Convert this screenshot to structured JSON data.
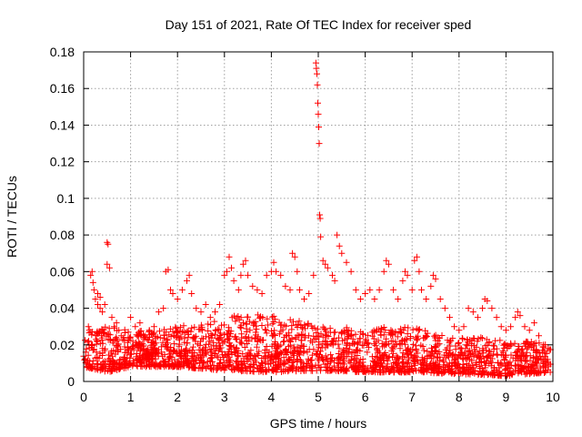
{
  "chart_data": {
    "type": "scatter",
    "title": "Day 151 of 2021, Rate Of TEC Index for receiver sped",
    "xlabel": "GPS time / hours",
    "ylabel": "ROTI / TECUs",
    "xlim": [
      0,
      10
    ],
    "ylim": [
      0,
      0.18
    ],
    "xticks": [
      0,
      1,
      2,
      3,
      4,
      5,
      6,
      7,
      8,
      9,
      10
    ],
    "xtick_labels": [
      "0",
      "1",
      "2",
      "3",
      "4",
      "5",
      "6",
      "7",
      "8",
      "9",
      "10"
    ],
    "yticks": [
      0,
      0.02,
      0.04,
      0.06,
      0.08,
      0.1,
      0.12,
      0.14,
      0.16,
      0.18
    ],
    "ytick_labels": [
      "0",
      "0.02",
      "0.04",
      "0.06",
      "0.08",
      "0.1",
      "0.12",
      "0.14",
      "0.16",
      "0.18"
    ],
    "grid": true,
    "marker": "+",
    "color": "#ff0000",
    "series": [
      {
        "name": "ROTI",
        "points": [
          [
            0.15,
            0.058
          ],
          [
            0.18,
            0.06
          ],
          [
            0.2,
            0.054
          ],
          [
            0.22,
            0.05
          ],
          [
            0.25,
            0.045
          ],
          [
            0.3,
            0.042
          ],
          [
            0.35,
            0.04
          ],
          [
            0.4,
            0.038
          ],
          [
            0.45,
            0.042
          ],
          [
            0.5,
            0.076
          ],
          [
            0.52,
            0.075
          ],
          [
            0.5,
            0.064
          ],
          [
            0.55,
            0.062
          ],
          [
            0.6,
            0.035
          ],
          [
            0.65,
            0.03
          ],
          [
            0.7,
            0.032
          ],
          [
            0.75,
            0.028
          ],
          [
            0.8,
            0.025
          ],
          [
            0.1,
            0.03
          ],
          [
            0.12,
            0.028
          ],
          [
            0.3,
            0.048
          ],
          [
            0.35,
            0.046
          ],
          [
            1.0,
            0.035
          ],
          [
            1.1,
            0.03
          ],
          [
            1.2,
            0.032
          ],
          [
            1.3,
            0.025
          ],
          [
            1.4,
            0.028
          ],
          [
            1.5,
            0.03
          ],
          [
            1.6,
            0.038
          ],
          [
            1.7,
            0.04
          ],
          [
            1.75,
            0.06
          ],
          [
            1.8,
            0.061
          ],
          [
            1.85,
            0.05
          ],
          [
            1.9,
            0.048
          ],
          [
            2.0,
            0.045
          ],
          [
            2.1,
            0.05
          ],
          [
            2.2,
            0.055
          ],
          [
            2.25,
            0.058
          ],
          [
            2.3,
            0.048
          ],
          [
            2.4,
            0.04
          ],
          [
            2.5,
            0.038
          ],
          [
            2.6,
            0.042
          ],
          [
            2.7,
            0.035
          ],
          [
            2.8,
            0.038
          ],
          [
            2.9,
            0.042
          ],
          [
            3.0,
            0.058
          ],
          [
            3.05,
            0.06
          ],
          [
            3.1,
            0.068
          ],
          [
            3.15,
            0.062
          ],
          [
            3.2,
            0.055
          ],
          [
            3.3,
            0.05
          ],
          [
            3.35,
            0.058
          ],
          [
            3.4,
            0.064
          ],
          [
            3.45,
            0.066
          ],
          [
            3.5,
            0.058
          ],
          [
            3.6,
            0.052
          ],
          [
            3.7,
            0.05
          ],
          [
            3.8,
            0.048
          ],
          [
            3.9,
            0.058
          ],
          [
            4.0,
            0.06
          ],
          [
            4.05,
            0.065
          ],
          [
            4.1,
            0.06
          ],
          [
            4.2,
            0.058
          ],
          [
            4.3,
            0.052
          ],
          [
            4.4,
            0.05
          ],
          [
            4.45,
            0.07
          ],
          [
            4.5,
            0.068
          ],
          [
            4.55,
            0.06
          ],
          [
            4.6,
            0.05
          ],
          [
            4.7,
            0.045
          ],
          [
            4.8,
            0.048
          ],
          [
            4.9,
            0.058
          ],
          [
            4.95,
            0.174
          ],
          [
            4.96,
            0.171
          ],
          [
            4.97,
            0.168
          ],
          [
            4.98,
            0.162
          ],
          [
            4.99,
            0.152
          ],
          [
            5.0,
            0.146
          ],
          [
            5.01,
            0.139
          ],
          [
            5.02,
            0.13
          ],
          [
            5.03,
            0.091
          ],
          [
            5.04,
            0.089
          ],
          [
            5.05,
            0.079
          ],
          [
            5.1,
            0.066
          ],
          [
            5.15,
            0.064
          ],
          [
            5.2,
            0.062
          ],
          [
            5.3,
            0.058
          ],
          [
            5.35,
            0.055
          ],
          [
            5.4,
            0.08
          ],
          [
            5.45,
            0.074
          ],
          [
            5.5,
            0.07
          ],
          [
            5.6,
            0.065
          ],
          [
            5.7,
            0.06
          ],
          [
            5.8,
            0.05
          ],
          [
            5.9,
            0.045
          ],
          [
            6.0,
            0.048
          ],
          [
            6.1,
            0.05
          ],
          [
            6.2,
            0.045
          ],
          [
            6.3,
            0.05
          ],
          [
            6.4,
            0.06
          ],
          [
            6.45,
            0.066
          ],
          [
            6.5,
            0.064
          ],
          [
            6.6,
            0.05
          ],
          [
            6.7,
            0.045
          ],
          [
            6.8,
            0.055
          ],
          [
            6.85,
            0.06
          ],
          [
            6.9,
            0.058
          ],
          [
            7.0,
            0.05
          ],
          [
            7.05,
            0.066
          ],
          [
            7.1,
            0.068
          ],
          [
            7.15,
            0.06
          ],
          [
            7.2,
            0.05
          ],
          [
            7.3,
            0.045
          ],
          [
            7.4,
            0.052
          ],
          [
            7.45,
            0.058
          ],
          [
            7.5,
            0.056
          ],
          [
            7.6,
            0.045
          ],
          [
            7.7,
            0.04
          ],
          [
            7.8,
            0.035
          ],
          [
            7.9,
            0.03
          ],
          [
            8.0,
            0.028
          ],
          [
            8.1,
            0.03
          ],
          [
            8.2,
            0.04
          ],
          [
            8.3,
            0.038
          ],
          [
            8.4,
            0.035
          ],
          [
            8.5,
            0.04
          ],
          [
            8.55,
            0.045
          ],
          [
            8.6,
            0.044
          ],
          [
            8.7,
            0.04
          ],
          [
            8.8,
            0.035
          ],
          [
            8.9,
            0.03
          ],
          [
            9.0,
            0.028
          ],
          [
            9.1,
            0.03
          ],
          [
            9.2,
            0.035
          ],
          [
            9.25,
            0.038
          ],
          [
            9.3,
            0.036
          ],
          [
            9.4,
            0.03
          ],
          [
            9.5,
            0.028
          ],
          [
            9.6,
            0.032
          ],
          [
            9.7,
            0.025
          ],
          [
            9.8,
            0.02
          ],
          [
            9.9,
            0.018
          ]
        ],
        "dense_band": {
          "description_x": [
            0,
            10
          ],
          "upper_envelope": [
            [
              0.0,
              0.026
            ],
            [
              0.5,
              0.03
            ],
            [
              1.0,
              0.028
            ],
            [
              1.5,
              0.028
            ],
            [
              2.0,
              0.03
            ],
            [
              2.5,
              0.032
            ],
            [
              3.0,
              0.035
            ],
            [
              3.5,
              0.038
            ],
            [
              4.0,
              0.036
            ],
            [
              4.5,
              0.034
            ],
            [
              5.0,
              0.03
            ],
            [
              5.5,
              0.03
            ],
            [
              6.0,
              0.028
            ],
            [
              6.5,
              0.03
            ],
            [
              7.0,
              0.03
            ],
            [
              7.5,
              0.026
            ],
            [
              8.0,
              0.024
            ],
            [
              8.5,
              0.024
            ],
            [
              9.0,
              0.022
            ],
            [
              9.5,
              0.022
            ],
            [
              9.95,
              0.02
            ]
          ],
          "lower_envelope": [
            [
              0.0,
              0.008
            ],
            [
              0.5,
              0.005
            ],
            [
              1.0,
              0.008
            ],
            [
              2.0,
              0.008
            ],
            [
              3.0,
              0.006
            ],
            [
              4.0,
              0.005
            ],
            [
              5.0,
              0.006
            ],
            [
              6.0,
              0.005
            ],
            [
              7.0,
              0.005
            ],
            [
              8.0,
              0.004
            ],
            [
              9.0,
              0.003
            ],
            [
              9.95,
              0.005
            ]
          ],
          "count": 2200
        }
      }
    ]
  }
}
